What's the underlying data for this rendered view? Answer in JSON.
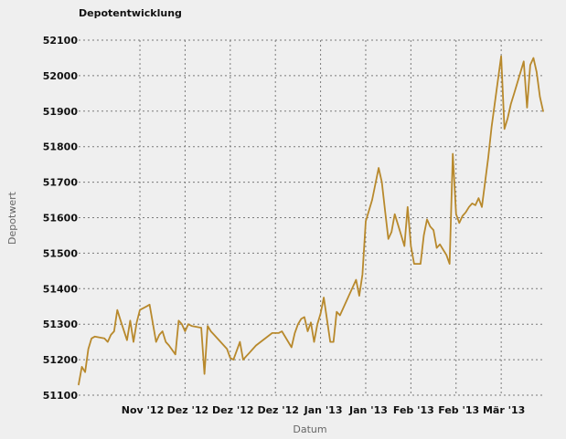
{
  "chart_data": {
    "type": "line",
    "title": "Depotentwicklung",
    "xlabel": "Datum",
    "ylabel": "Depotwert",
    "ylim": [
      51100,
      52100
    ],
    "yticks": [
      51100,
      51200,
      51300,
      51400,
      51500,
      51600,
      51700,
      51800,
      51900,
      52000,
      52100
    ],
    "xlim": [
      "2012-10-13",
      "2013-03-06"
    ],
    "xticks": [
      {
        "label": "Nov '12",
        "date": "2012-11-01"
      },
      {
        "label": "Dez '12",
        "date": "2012-11-15"
      },
      {
        "label": "Dez '12",
        "date": "2012-11-29"
      },
      {
        "label": "Dez '12",
        "date": "2012-12-13"
      },
      {
        "label": "Jan '13",
        "date": "2012-12-27"
      },
      {
        "label": "Jan '13",
        "date": "2013-01-10"
      },
      {
        "label": "Feb '13",
        "date": "2013-01-24"
      },
      {
        "label": "Feb '13",
        "date": "2013-02-07"
      },
      {
        "label": "Mär '13",
        "date": "2013-02-21"
      }
    ],
    "grid": true,
    "colors": {
      "line": "#b8892c",
      "grid": "#7a7a7a",
      "background": "#efefef"
    },
    "series": [
      {
        "x": [
          "2012-10-13",
          "2012-10-14",
          "2012-10-15",
          "2012-10-16",
          "2012-10-17",
          "2012-10-18",
          "2012-10-21",
          "2012-10-22",
          "2012-10-23",
          "2012-10-24",
          "2012-10-25",
          "2012-10-26",
          "2012-10-28",
          "2012-10-29",
          "2012-10-30",
          "2012-10-31",
          "2012-11-01",
          "2012-11-02",
          "2012-11-03",
          "2012-11-04",
          "2012-11-06",
          "2012-11-07",
          "2012-11-08",
          "2012-11-09",
          "2012-11-10",
          "2012-11-12",
          "2012-11-13",
          "2012-11-14",
          "2012-11-15",
          "2012-11-16",
          "2012-11-17",
          "2012-11-20",
          "2012-11-21",
          "2012-11-22",
          "2012-11-23",
          "2012-11-24",
          "2012-11-28",
          "2012-11-29",
          "2012-11-30",
          "2012-12-02",
          "2012-12-03",
          "2012-12-04",
          "2012-12-05",
          "2012-12-06",
          "2012-12-07",
          "2012-12-12",
          "2012-12-13",
          "2012-12-14",
          "2012-12-15",
          "2012-12-18",
          "2012-12-19",
          "2012-12-20",
          "2012-12-21",
          "2012-12-22",
          "2012-12-23",
          "2012-12-24",
          "2012-12-25",
          "2012-12-26",
          "2012-12-27",
          "2012-12-28",
          "2012-12-30",
          "2012-12-31",
          "2013-01-01",
          "2013-01-02",
          "2013-01-03",
          "2013-01-07",
          "2013-01-08",
          "2013-01-09",
          "2013-01-10",
          "2013-01-11",
          "2013-01-12",
          "2013-01-14",
          "2013-01-15",
          "2013-01-16",
          "2013-01-17",
          "2013-01-18",
          "2013-01-19",
          "2013-01-20",
          "2013-01-21",
          "2013-01-22",
          "2013-01-23",
          "2013-01-24",
          "2013-01-25",
          "2013-01-27",
          "2013-01-28",
          "2013-01-29",
          "2013-01-30",
          "2013-01-31",
          "2013-02-01",
          "2013-02-02",
          "2013-02-03",
          "2013-02-04",
          "2013-02-05",
          "2013-02-06",
          "2013-02-07",
          "2013-02-08",
          "2013-02-09",
          "2013-02-10",
          "2013-02-11",
          "2013-02-12",
          "2013-02-13",
          "2013-02-14",
          "2013-02-15",
          "2013-02-16",
          "2013-02-17",
          "2013-02-18",
          "2013-02-21",
          "2013-02-22",
          "2013-02-23",
          "2013-02-24",
          "2013-02-25",
          "2013-02-28",
          "2013-03-01",
          "2013-03-02",
          "2013-03-03",
          "2013-03-04",
          "2013-03-05",
          "2013-03-06"
        ],
        "y": [
          51130,
          51180,
          51165,
          51230,
          51260,
          51265,
          51260,
          51250,
          51270,
          51280,
          51340,
          51310,
          51255,
          51310,
          51250,
          51305,
          51340,
          51345,
          51350,
          51355,
          51250,
          51270,
          51280,
          51250,
          51240,
          51215,
          51310,
          51300,
          51280,
          51300,
          51295,
          51290,
          51160,
          51295,
          51280,
          51270,
          51230,
          51205,
          51200,
          51250,
          51200,
          51210,
          51220,
          51230,
          51240,
          51275,
          51275,
          51275,
          51280,
          51235,
          51275,
          51300,
          51315,
          51320,
          51280,
          51305,
          51250,
          51300,
          51330,
          51375,
          51250,
          51250,
          51335,
          51325,
          51345,
          51425,
          51380,
          51440,
          51590,
          51620,
          51650,
          51740,
          51700,
          51620,
          51540,
          51560,
          51610,
          51580,
          51550,
          51520,
          51630,
          51520,
          51470,
          51470,
          51550,
          51595,
          51575,
          51565,
          51515,
          51525,
          51510,
          51495,
          51470,
          51780,
          51610,
          51585,
          51605,
          51615,
          51630,
          51640,
          51635,
          51655,
          51630,
          51700,
          51770,
          51855,
          52055,
          51850,
          51880,
          51920,
          51950,
          52040,
          51910,
          52030,
          52050,
          52010,
          51940,
          51900
        ]
      }
    ]
  }
}
